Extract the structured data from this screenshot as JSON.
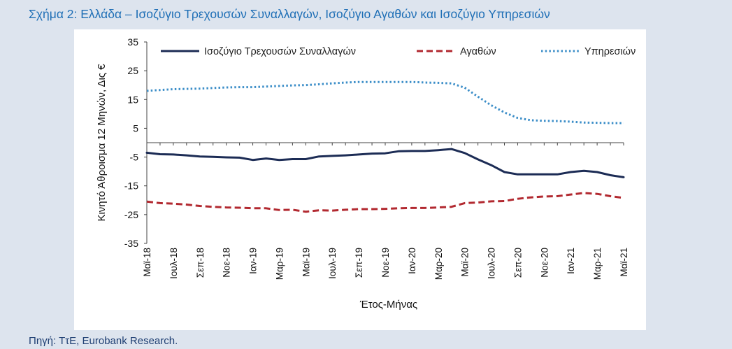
{
  "figure": {
    "title": "Σχήμα 2: Ελλάδα – Ισοζύγιο Τρεχουσών Συναλλαγών, Ισοζύγιο Αγαθών και Ισοζύγιο Υπηρεσιών",
    "source": "Πηγή: ΤτΕ, Eurobank Research."
  },
  "chart_data": {
    "type": "line",
    "title": "Σχήμα 2: Ελλάδα – Ισοζύγιο Τρεχουσών Συναλλαγών, Ισοζύγιο Αγαθών και Ισοζύγιο Υπηρεσιών",
    "xlabel": "Έτος-Μήνας",
    "ylabel": "Κινητό Άθροισμα 12 Μηνών, Δις €",
    "ylim": [
      -35,
      35
    ],
    "yticks": [
      35,
      25,
      15,
      5,
      -5,
      -15,
      -25,
      -35
    ],
    "grid": false,
    "legend_position": "top",
    "x_ticks": [
      "Μαϊ-18",
      "Ιουλ-18",
      "Σεπ-18",
      "Νοε-18",
      "Ιαν-19",
      "Μαρ-19",
      "Μαϊ-19",
      "Ιουλ-19",
      "Σεπ-19",
      "Νοε-19",
      "Ιαν-20",
      "Μαρ-20",
      "Μαϊ-20",
      "Ιουλ-20",
      "Σεπ-20",
      "Νοε-20",
      "Ιαν-21",
      "Μαρ-21",
      "Μαϊ-21"
    ],
    "x": [
      "Μαϊ-18",
      "Ιουν-18",
      "Ιουλ-18",
      "Αυγ-18",
      "Σεπ-18",
      "Οκτ-18",
      "Νοε-18",
      "Δεκ-18",
      "Ιαν-19",
      "Φεβ-19",
      "Μαρ-19",
      "Απρ-19",
      "Μαϊ-19",
      "Ιουν-19",
      "Ιουλ-19",
      "Αυγ-19",
      "Σεπ-19",
      "Οκτ-19",
      "Νοε-19",
      "Δεκ-19",
      "Ιαν-20",
      "Φεβ-20",
      "Μαρ-20",
      "Απρ-20",
      "Μαϊ-20",
      "Ιουν-20",
      "Ιουλ-20",
      "Αυγ-20",
      "Σεπ-20",
      "Οκτ-20",
      "Νοε-20",
      "Δεκ-20",
      "Ιαν-21",
      "Φεβ-21",
      "Μαρ-21",
      "Απρ-21",
      "Μαϊ-21"
    ],
    "series": [
      {
        "name": "Ισοζύγιο Τρεχουσών Συναλλαγών",
        "color": "#1c2c55",
        "style": "solid",
        "values": [
          -3.5,
          -4.0,
          -4.1,
          -4.4,
          -4.8,
          -4.9,
          -5.1,
          -5.2,
          -6.0,
          -5.5,
          -6.0,
          -5.7,
          -5.7,
          -4.8,
          -4.6,
          -4.4,
          -4.1,
          -3.8,
          -3.7,
          -3.0,
          -2.9,
          -2.9,
          -2.6,
          -2.2,
          -3.6,
          -5.8,
          -7.8,
          -10.2,
          -11.0,
          -11.0,
          -11.0,
          -11.0,
          -10.2,
          -9.8,
          -10.2,
          -11.3,
          -12.0
        ]
      },
      {
        "name": "Αγαθών",
        "color": "#b22930",
        "style": "dashed",
        "values": [
          -20.5,
          -21.0,
          -21.2,
          -21.5,
          -22.0,
          -22.3,
          -22.5,
          -22.6,
          -22.8,
          -22.8,
          -23.4,
          -23.3,
          -24.0,
          -23.5,
          -23.6,
          -23.3,
          -23.1,
          -23.1,
          -23.0,
          -22.8,
          -22.7,
          -22.7,
          -22.5,
          -22.3,
          -21.0,
          -20.8,
          -20.4,
          -20.3,
          -19.5,
          -19.0,
          -18.7,
          -18.6,
          -18.0,
          -17.5,
          -17.8,
          -18.6,
          -19.2
        ]
      },
      {
        "name": "Υπηρεσιών",
        "color": "#3c8ec8",
        "style": "dotted",
        "values": [
          18.0,
          18.3,
          18.6,
          18.7,
          18.8,
          19.0,
          19.2,
          19.3,
          19.3,
          19.5,
          19.7,
          19.9,
          20.0,
          20.3,
          20.6,
          20.9,
          21.1,
          21.1,
          21.1,
          21.1,
          21.1,
          20.9,
          20.8,
          20.6,
          19.1,
          16.0,
          13.0,
          10.5,
          8.6,
          7.8,
          7.6,
          7.5,
          7.3,
          7.0,
          6.9,
          6.8,
          6.8
        ]
      }
    ]
  }
}
